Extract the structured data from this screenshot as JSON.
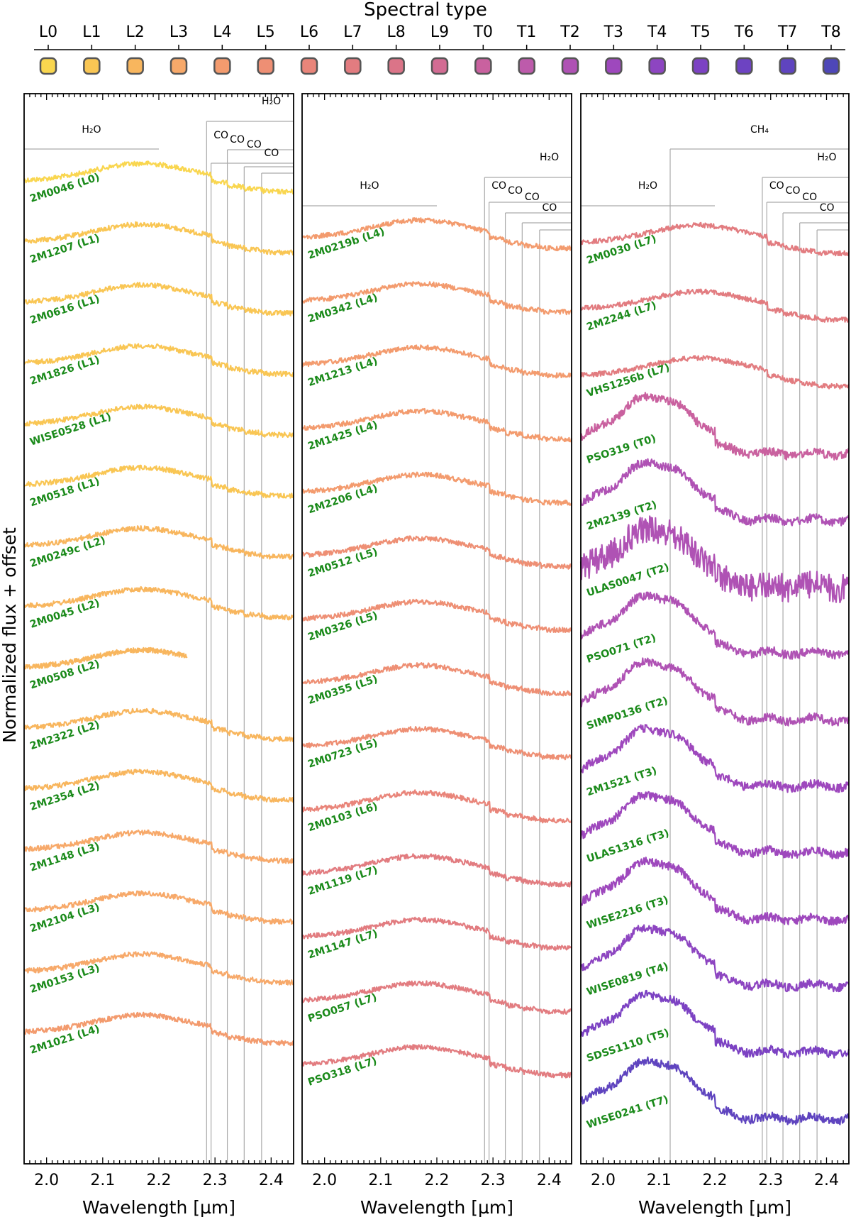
{
  "chart_data": {
    "type": "line",
    "title": "Spectral type",
    "ylabel": "Normalized flux + offset",
    "xlabel": "Wavelength [µm]",
    "xlim": [
      1.96,
      2.44
    ],
    "x_ticks": [
      "2.0",
      "2.1",
      "2.2",
      "2.3",
      "2.4"
    ],
    "spectral_types": [
      "L0",
      "L1",
      "L2",
      "L3",
      "L4",
      "L5",
      "L6",
      "L7",
      "L8",
      "L9",
      "T0",
      "T1",
      "T2",
      "T3",
      "T4",
      "T5",
      "T6",
      "T7",
      "T8"
    ],
    "type_colors": [
      "#f9d64f",
      "#f9c654",
      "#f8b65e",
      "#f7a96a",
      "#f39b6e",
      "#ee8f74",
      "#e9857a",
      "#e27c80",
      "#db7488",
      "#d26c93",
      "#c9619f",
      "#bd5bab",
      "#af52b4",
      "#9e48bd",
      "#8d45c1",
      "#7c42c3",
      "#6d43c2",
      "#5f44bf",
      "#4e47b8"
    ],
    "panels": [
      {
        "name": "left",
        "objects": [
          {
            "label": "2M0046 (L0)",
            "type": "L0"
          },
          {
            "label": "2M1207 (L1)",
            "type": "L1"
          },
          {
            "label": "2M0616 (L1)",
            "type": "L1"
          },
          {
            "label": "2M1826 (L1)",
            "type": "L1"
          },
          {
            "label": "WISE0528 (L1)",
            "type": "L1"
          },
          {
            "label": "2M0518 (L1)",
            "type": "L1"
          },
          {
            "label": "2M0249c (L2)",
            "type": "L2"
          },
          {
            "label": "2M0045 (L2)",
            "type": "L2"
          },
          {
            "label": "2M0508 (L2)",
            "type": "L2"
          },
          {
            "label": "2M2322 (L2)",
            "type": "L2"
          },
          {
            "label": "2M2354 (L2)",
            "type": "L2"
          },
          {
            "label": "2M1148 (L3)",
            "type": "L3"
          },
          {
            "label": "2M2104 (L3)",
            "type": "L3"
          },
          {
            "label": "2M0153 (L3)",
            "type": "L3"
          },
          {
            "label": "2M1021 (L4)",
            "type": "L4"
          }
        ],
        "features": [
          {
            "label": "H₂O",
            "x_start": 1.96,
            "x_end": 2.2
          },
          {
            "label": "H₂O",
            "x_start": 2.285,
            "x_end": 2.44
          },
          {
            "label": "CO",
            "x_start": 2.293,
            "x_end": 2.44
          },
          {
            "label": "CO",
            "x_start": 2.322,
            "x_end": 2.44
          },
          {
            "label": "CO",
            "x_start": 2.352,
            "x_end": 2.44
          },
          {
            "label": "CO",
            "x_start": 2.383,
            "x_end": 2.44
          }
        ]
      },
      {
        "name": "middle",
        "objects": [
          {
            "label": "2M0219b (L4)",
            "type": "L4"
          },
          {
            "label": "2M0342 (L4)",
            "type": "L4"
          },
          {
            "label": "2M1213 (L4)",
            "type": "L4"
          },
          {
            "label": "2M1425 (L4)",
            "type": "L4"
          },
          {
            "label": "2M2206 (L4)",
            "type": "L4"
          },
          {
            "label": "2M0512 (L5)",
            "type": "L5"
          },
          {
            "label": "2M0326 (L5)",
            "type": "L5"
          },
          {
            "label": "2M0355 (L5)",
            "type": "L5"
          },
          {
            "label": "2M0723 (L5)",
            "type": "L5"
          },
          {
            "label": "2M0103 (L6)",
            "type": "L6"
          },
          {
            "label": "2M1119 (L7)",
            "type": "L7"
          },
          {
            "label": "2M1147 (L7)",
            "type": "L7"
          },
          {
            "label": "PSO057 (L7)",
            "type": "L7"
          },
          {
            "label": "PSO318 (L7)",
            "type": "L7"
          }
        ],
        "features": [
          {
            "label": "H₂O",
            "x_start": 1.96,
            "x_end": 2.2
          },
          {
            "label": "H₂O",
            "x_start": 2.285,
            "x_end": 2.44
          },
          {
            "label": "CO",
            "x_start": 2.293,
            "x_end": 2.44
          },
          {
            "label": "CO",
            "x_start": 2.322,
            "x_end": 2.44
          },
          {
            "label": "CO",
            "x_start": 2.352,
            "x_end": 2.44
          },
          {
            "label": "CO",
            "x_start": 2.383,
            "x_end": 2.44
          }
        ]
      },
      {
        "name": "right",
        "objects": [
          {
            "label": "2M0030 (L7)",
            "type": "L7"
          },
          {
            "label": "2M2244 (L7)",
            "type": "L7"
          },
          {
            "label": "VHS1256b (L7)",
            "type": "L7"
          },
          {
            "label": "PSO319 (T0)",
            "type": "T0"
          },
          {
            "label": "2M2139 (T2)",
            "type": "T2"
          },
          {
            "label": "ULAS0047 (T2)",
            "type": "T2"
          },
          {
            "label": "PSO071 (T2)",
            "type": "T2"
          },
          {
            "label": "SIMP0136 (T2)",
            "type": "T2"
          },
          {
            "label": "2M1521 (T3)",
            "type": "T3"
          },
          {
            "label": "ULAS1316 (T3)",
            "type": "T3"
          },
          {
            "label": "WISE2216 (T3)",
            "type": "T3"
          },
          {
            "label": "WISE0819 (T4)",
            "type": "T4"
          },
          {
            "label": "SDSS1110 (T5)",
            "type": "T5"
          },
          {
            "label": "WISE0241 (T7)",
            "type": "T7"
          }
        ],
        "features": [
          {
            "label": "CH₄",
            "x_start": 2.12,
            "x_end": 2.44
          },
          {
            "label": "H₂O",
            "x_start": 1.96,
            "x_end": 2.2
          },
          {
            "label": "H₂O",
            "x_start": 2.285,
            "x_end": 2.44
          },
          {
            "label": "CO",
            "x_start": 2.293,
            "x_end": 2.44
          },
          {
            "label": "CO",
            "x_start": 2.322,
            "x_end": 2.44
          },
          {
            "label": "CO",
            "x_start": 2.352,
            "x_end": 2.44
          },
          {
            "label": "CO",
            "x_start": 2.383,
            "x_end": 2.44
          }
        ]
      }
    ]
  }
}
